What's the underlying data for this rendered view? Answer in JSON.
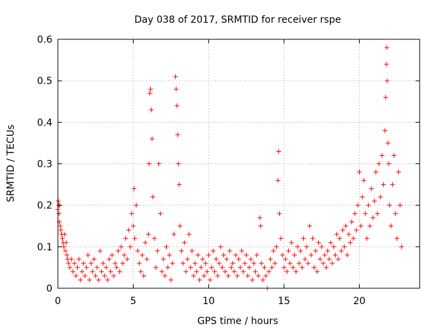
{
  "chart_data": {
    "type": "scatter",
    "title": "Day 038 of 2017, SRMTID for receiver rspe",
    "xlabel": "GPS time / hours",
    "ylabel": "SRMTID / TECUs",
    "xlim": [
      0,
      24
    ],
    "ylim": [
      0,
      0.6
    ],
    "xticks": [
      0,
      5,
      10,
      15,
      20
    ],
    "xtick_labels": [
      "0",
      "5",
      "10",
      "15",
      "20"
    ],
    "yticks": [
      0,
      0.1,
      0.2,
      0.3,
      0.4,
      0.5,
      0.6
    ],
    "ytick_labels": [
      "0",
      "0.1",
      "0.2",
      "0.3",
      "0.4",
      "0.5",
      "0.6"
    ],
    "grid": true,
    "marker": "+",
    "series_color": "#ff0000",
    "series": [
      {
        "name": "SRMTID",
        "points": [
          [
            0.0,
            0.19
          ],
          [
            0.02,
            0.21
          ],
          [
            0.05,
            0.2
          ],
          [
            0.08,
            0.18
          ],
          [
            0.1,
            0.16
          ],
          [
            0.12,
            0.2
          ],
          [
            0.15,
            0.15
          ],
          [
            0.2,
            0.14
          ],
          [
            0.25,
            0.13
          ],
          [
            0.3,
            0.12
          ],
          [
            0.35,
            0.11
          ],
          [
            0.4,
            0.1
          ],
          [
            0.45,
            0.13
          ],
          [
            0.5,
            0.09
          ],
          [
            0.55,
            0.11
          ],
          [
            0.6,
            0.08
          ],
          [
            0.65,
            0.07
          ],
          [
            0.7,
            0.06
          ],
          [
            0.8,
            0.05
          ],
          [
            0.9,
            0.07
          ],
          [
            1.0,
            0.04
          ],
          [
            1.1,
            0.06
          ],
          [
            1.2,
            0.03
          ],
          [
            1.3,
            0.05
          ],
          [
            1.4,
            0.07
          ],
          [
            1.5,
            0.02
          ],
          [
            1.6,
            0.04
          ],
          [
            1.7,
            0.06
          ],
          [
            1.8,
            0.03
          ],
          [
            1.9,
            0.05
          ],
          [
            2.0,
            0.08
          ],
          [
            2.1,
            0.02
          ],
          [
            2.2,
            0.06
          ],
          [
            2.3,
            0.04
          ],
          [
            2.4,
            0.07
          ],
          [
            2.5,
            0.03
          ],
          [
            2.6,
            0.05
          ],
          [
            2.7,
            0.02
          ],
          [
            2.8,
            0.09
          ],
          [
            2.9,
            0.04
          ],
          [
            3.0,
            0.06
          ],
          [
            3.1,
            0.03
          ],
          [
            3.2,
            0.05
          ],
          [
            3.3,
            0.02
          ],
          [
            3.4,
            0.07
          ],
          [
            3.5,
            0.04
          ],
          [
            3.6,
            0.08
          ],
          [
            3.7,
            0.03
          ],
          [
            3.8,
            0.06
          ],
          [
            3.9,
            0.05
          ],
          [
            4.0,
            0.09
          ],
          [
            4.1,
            0.04
          ],
          [
            4.2,
            0.1
          ],
          [
            4.3,
            0.06
          ],
          [
            4.4,
            0.08
          ],
          [
            4.5,
            0.12
          ],
          [
            4.6,
            0.07
          ],
          [
            4.7,
            0.14
          ],
          [
            4.8,
            0.1
          ],
          [
            4.9,
            0.18
          ],
          [
            5.0,
            0.15
          ],
          [
            5.05,
            0.24
          ],
          [
            5.1,
            0.12
          ],
          [
            5.2,
            0.2
          ],
          [
            5.3,
            0.09
          ],
          [
            5.4,
            0.06
          ],
          [
            5.5,
            0.04
          ],
          [
            5.6,
            0.08
          ],
          [
            5.7,
            0.03
          ],
          [
            5.8,
            0.11
          ],
          [
            5.9,
            0.07
          ],
          [
            6.0,
            0.13
          ],
          [
            6.05,
            0.3
          ],
          [
            6.1,
            0.47
          ],
          [
            6.15,
            0.48
          ],
          [
            6.2,
            0.43
          ],
          [
            6.25,
            0.36
          ],
          [
            6.3,
            0.22
          ],
          [
            6.4,
            0.12
          ],
          [
            6.5,
            0.05
          ],
          [
            6.6,
            0.09
          ],
          [
            6.7,
            0.3
          ],
          [
            6.8,
            0.18
          ],
          [
            6.9,
            0.04
          ],
          [
            7.0,
            0.07
          ],
          [
            7.1,
            0.03
          ],
          [
            7.2,
            0.1
          ],
          [
            7.3,
            0.05
          ],
          [
            7.4,
            0.08
          ],
          [
            7.5,
            0.02
          ],
          [
            7.6,
            0.06
          ],
          [
            7.7,
            0.13
          ],
          [
            7.8,
            0.51
          ],
          [
            7.85,
            0.48
          ],
          [
            7.9,
            0.44
          ],
          [
            7.95,
            0.37
          ],
          [
            8.0,
            0.3
          ],
          [
            8.05,
            0.25
          ],
          [
            8.1,
            0.15
          ],
          [
            8.2,
            0.09
          ],
          [
            8.3,
            0.06
          ],
          [
            8.4,
            0.11
          ],
          [
            8.5,
            0.04
          ],
          [
            8.6,
            0.07
          ],
          [
            8.7,
            0.13
          ],
          [
            8.8,
            0.05
          ],
          [
            8.9,
            0.09
          ],
          [
            9.0,
            0.03
          ],
          [
            9.1,
            0.06
          ],
          [
            9.2,
            0.04
          ],
          [
            9.3,
            0.08
          ],
          [
            9.4,
            0.02
          ],
          [
            9.5,
            0.05
          ],
          [
            9.6,
            0.07
          ],
          [
            9.7,
            0.03
          ],
          [
            9.8,
            0.06
          ],
          [
            9.9,
            0.04
          ],
          [
            10.0,
            0.08
          ],
          [
            10.1,
            0.02
          ],
          [
            10.2,
            0.05
          ],
          [
            10.3,
            0.09
          ],
          [
            10.4,
            0.04
          ],
          [
            10.5,
            0.07
          ],
          [
            10.6,
            0.03
          ],
          [
            10.7,
            0.06
          ],
          [
            10.8,
            0.1
          ],
          [
            10.9,
            0.05
          ],
          [
            11.0,
            0.08
          ],
          [
            11.1,
            0.04
          ],
          [
            11.2,
            0.07
          ],
          [
            11.3,
            0.03
          ],
          [
            11.4,
            0.09
          ],
          [
            11.5,
            0.05
          ],
          [
            11.6,
            0.06
          ],
          [
            11.7,
            0.04
          ],
          [
            11.8,
            0.08
          ],
          [
            11.9,
            0.03
          ],
          [
            12.0,
            0.07
          ],
          [
            12.1,
            0.05
          ],
          [
            12.2,
            0.09
          ],
          [
            12.3,
            0.04
          ],
          [
            12.4,
            0.06
          ],
          [
            12.5,
            0.08
          ],
          [
            12.6,
            0.03
          ],
          [
            12.7,
            0.05
          ],
          [
            12.8,
            0.07
          ],
          [
            12.9,
            0.02
          ],
          [
            13.0,
            0.06
          ],
          [
            13.1,
            0.04
          ],
          [
            13.2,
            0.08
          ],
          [
            13.3,
            0.03
          ],
          [
            13.4,
            0.17
          ],
          [
            13.45,
            0.15
          ],
          [
            13.5,
            0.06
          ],
          [
            13.6,
            0.02
          ],
          [
            13.7,
            0.05
          ],
          [
            13.8,
            0.03
          ],
          [
            13.9,
            0.0
          ],
          [
            14.0,
            0.04
          ],
          [
            14.1,
            0.07
          ],
          [
            14.2,
            0.05
          ],
          [
            14.3,
            0.09
          ],
          [
            14.4,
            0.06
          ],
          [
            14.5,
            0.1
          ],
          [
            14.6,
            0.26
          ],
          [
            14.65,
            0.33
          ],
          [
            14.7,
            0.18
          ],
          [
            14.8,
            0.12
          ],
          [
            14.9,
            0.08
          ],
          [
            15.0,
            0.05
          ],
          [
            15.1,
            0.07
          ],
          [
            15.2,
            0.04
          ],
          [
            15.3,
            0.09
          ],
          [
            15.4,
            0.06
          ],
          [
            15.5,
            0.11
          ],
          [
            15.6,
            0.05
          ],
          [
            15.7,
            0.08
          ],
          [
            15.8,
            0.04
          ],
          [
            15.9,
            0.1
          ],
          [
            16.0,
            0.06
          ],
          [
            16.1,
            0.09
          ],
          [
            16.2,
            0.05
          ],
          [
            16.3,
            0.12
          ],
          [
            16.4,
            0.07
          ],
          [
            16.5,
            0.1
          ],
          [
            16.6,
            0.06
          ],
          [
            16.7,
            0.15
          ],
          [
            16.8,
            0.08
          ],
          [
            16.9,
            0.12
          ],
          [
            17.0,
            0.05
          ],
          [
            17.1,
            0.09
          ],
          [
            17.2,
            0.04
          ],
          [
            17.3,
            0.11
          ],
          [
            17.4,
            0.07
          ],
          [
            17.5,
            0.1
          ],
          [
            17.6,
            0.06
          ],
          [
            17.7,
            0.08
          ],
          [
            17.8,
            0.05
          ],
          [
            17.9,
            0.09
          ],
          [
            18.0,
            0.07
          ],
          [
            18.1,
            0.11
          ],
          [
            18.2,
            0.06
          ],
          [
            18.3,
            0.1
          ],
          [
            18.4,
            0.08
          ],
          [
            18.5,
            0.13
          ],
          [
            18.6,
            0.07
          ],
          [
            18.7,
            0.12
          ],
          [
            18.8,
            0.09
          ],
          [
            18.9,
            0.14
          ],
          [
            19.0,
            0.1
          ],
          [
            19.1,
            0.15
          ],
          [
            19.2,
            0.08
          ],
          [
            19.3,
            0.13
          ],
          [
            19.4,
            0.11
          ],
          [
            19.5,
            0.16
          ],
          [
            19.6,
            0.12
          ],
          [
            19.7,
            0.18
          ],
          [
            19.8,
            0.14
          ],
          [
            19.9,
            0.2
          ],
          [
            20.0,
            0.28
          ],
          [
            20.1,
            0.15
          ],
          [
            20.2,
            0.22
          ],
          [
            20.3,
            0.26
          ],
          [
            20.4,
            0.18
          ],
          [
            20.5,
            0.12
          ],
          [
            20.6,
            0.2
          ],
          [
            20.7,
            0.15
          ],
          [
            20.8,
            0.24
          ],
          [
            20.9,
            0.17
          ],
          [
            21.0,
            0.21
          ],
          [
            21.1,
            0.28
          ],
          [
            21.2,
            0.18
          ],
          [
            21.3,
            0.3
          ],
          [
            21.4,
            0.22
          ],
          [
            21.5,
            0.32
          ],
          [
            21.6,
            0.25
          ],
          [
            21.7,
            0.38
          ],
          [
            21.75,
            0.46
          ],
          [
            21.8,
            0.54
          ],
          [
            21.82,
            0.58
          ],
          [
            21.85,
            0.5
          ],
          [
            21.9,
            0.35
          ],
          [
            21.95,
            0.3
          ],
          [
            22.0,
            0.2
          ],
          [
            22.1,
            0.15
          ],
          [
            22.2,
            0.25
          ],
          [
            22.3,
            0.32
          ],
          [
            22.4,
            0.18
          ],
          [
            22.5,
            0.12
          ],
          [
            22.6,
            0.28
          ],
          [
            22.7,
            0.2
          ],
          [
            22.8,
            0.1
          ]
        ]
      }
    ]
  }
}
